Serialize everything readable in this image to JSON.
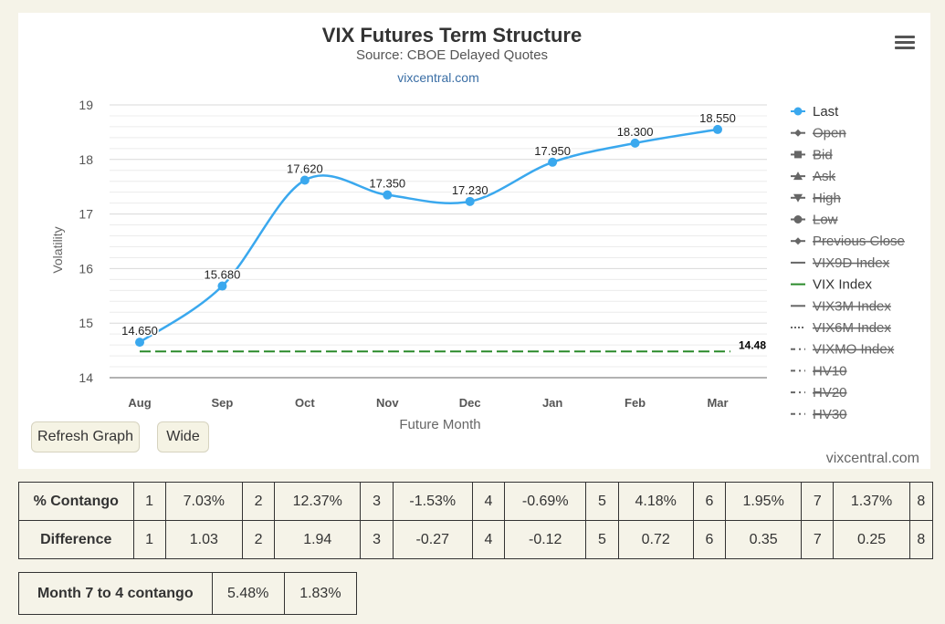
{
  "chart_data": {
    "type": "line",
    "title": "VIX Futures Term Structure",
    "subtitle": "Source: CBOE Delayed Quotes",
    "source_link": "vixcentral.com",
    "xlabel": "Future Month",
    "ylabel": "Volatility",
    "categories": [
      "Aug",
      "Sep",
      "Oct",
      "Nov",
      "Dec",
      "Jan",
      "Feb",
      "Mar"
    ],
    "ylim": [
      14,
      19
    ],
    "yticks": [
      "14",
      "15",
      "16",
      "17",
      "18",
      "19"
    ],
    "grid": true,
    "legend_position": "right",
    "series": [
      {
        "name": "Last",
        "values": [
          14.65,
          15.68,
          17.62,
          17.35,
          17.23,
          17.95,
          18.3,
          18.55
        ],
        "labels": [
          "14.650",
          "15.680",
          "17.620",
          "17.350",
          "17.230",
          "17.950",
          "18.300",
          "18.550"
        ],
        "color": "#3aa8ee"
      },
      {
        "name": "VIX Index",
        "value": 14.48,
        "label": "14.48",
        "color": "#2a8a2a"
      }
    ],
    "legend": [
      {
        "name": "Last",
        "symbol": "circle",
        "active": true
      },
      {
        "name": "Open",
        "symbol": "diamond",
        "active": false
      },
      {
        "name": "Bid",
        "symbol": "square",
        "active": false
      },
      {
        "name": "Ask",
        "symbol": "triangle",
        "active": false
      },
      {
        "name": "High",
        "symbol": "triangle-down",
        "active": false
      },
      {
        "name": "Low",
        "symbol": "circle",
        "active": false
      },
      {
        "name": "Previous Close",
        "symbol": "diamond",
        "active": false
      },
      {
        "name": "VIX9D Index",
        "symbol": "solid",
        "active": false
      },
      {
        "name": "VIX Index",
        "symbol": "solid",
        "active": true
      },
      {
        "name": "VIX3M Index",
        "symbol": "solid",
        "active": false
      },
      {
        "name": "VIX6M Index",
        "symbol": "dotted",
        "active": false
      },
      {
        "name": "VIXMO Index",
        "symbol": "dashdot",
        "active": false
      },
      {
        "name": "HV10",
        "symbol": "dashdot",
        "active": false
      },
      {
        "name": "HV20",
        "symbol": "dashdot",
        "active": false
      },
      {
        "name": "HV30",
        "symbol": "dashdot",
        "active": false
      }
    ]
  },
  "controls": {
    "refresh_label": "Refresh Graph",
    "wide_label": "Wide",
    "menu_icon": "hamburger-menu-icon"
  },
  "credit": "vixcentral.com",
  "contango_table": {
    "rows": [
      {
        "header": "% Contango",
        "cells": [
          "1",
          "7.03%",
          "2",
          "12.37%",
          "3",
          "-1.53%",
          "4",
          "-0.69%",
          "5",
          "4.18%",
          "6",
          "1.95%",
          "7",
          "1.37%",
          "8"
        ]
      },
      {
        "header": "Difference",
        "cells": [
          "1",
          "1.03",
          "2",
          "1.94",
          "3",
          "-0.27",
          "4",
          "-0.12",
          "5",
          "0.72",
          "6",
          "0.35",
          "7",
          "0.25",
          "8"
        ]
      }
    ]
  },
  "month_table": {
    "header": "Month 7 to 4 contango",
    "cells": [
      "5.48%",
      "1.83%"
    ]
  }
}
